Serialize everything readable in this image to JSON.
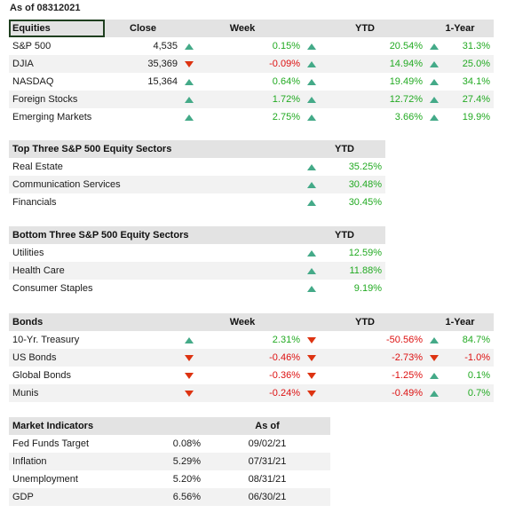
{
  "as_of": "As of 08312021",
  "equities": {
    "headers": [
      "Equities",
      "Close",
      "Week",
      "YTD",
      "1-Year"
    ],
    "rows": [
      {
        "name": "S&P 500",
        "close": "4,535",
        "week": "0.15%",
        "week_dir": "up",
        "ytd": "20.54%",
        "ytd_dir": "up",
        "year": "31.3%",
        "year_dir": "up"
      },
      {
        "name": "DJIA",
        "close": "35,369",
        "week": "-0.09%",
        "week_dir": "down",
        "ytd": "14.94%",
        "ytd_dir": "up",
        "year": "25.0%",
        "year_dir": "up"
      },
      {
        "name": "NASDAQ",
        "close": "15,364",
        "week": "0.64%",
        "week_dir": "up",
        "ytd": "19.49%",
        "ytd_dir": "up",
        "year": "34.1%",
        "year_dir": "up"
      },
      {
        "name": "Foreign Stocks",
        "close": "",
        "week": "1.72%",
        "week_dir": "up",
        "ytd": "12.72%",
        "ytd_dir": "up",
        "year": "27.4%",
        "year_dir": "up"
      },
      {
        "name": "Emerging Markets",
        "close": "",
        "week": "2.75%",
        "week_dir": "up",
        "ytd": "3.66%",
        "ytd_dir": "up",
        "year": "19.9%",
        "year_dir": "up"
      }
    ]
  },
  "top_sectors": {
    "headers": [
      "Top Three S&P 500 Equity Sectors",
      "YTD"
    ],
    "rows": [
      {
        "name": "Real Estate",
        "ytd": "35.25%",
        "ytd_dir": "up"
      },
      {
        "name": "Communication Services",
        "ytd": "30.48%",
        "ytd_dir": "up"
      },
      {
        "name": "Financials",
        "ytd": "30.45%",
        "ytd_dir": "up"
      }
    ]
  },
  "bottom_sectors": {
    "headers": [
      "Bottom Three S&P 500 Equity Sectors",
      "YTD"
    ],
    "rows": [
      {
        "name": "Utilities",
        "ytd": "12.59%",
        "ytd_dir": "up"
      },
      {
        "name": "Health Care",
        "ytd": "11.88%",
        "ytd_dir": "up"
      },
      {
        "name": "Consumer Staples",
        "ytd": "9.19%",
        "ytd_dir": "up"
      }
    ]
  },
  "bonds": {
    "headers": [
      "Bonds",
      "Week",
      "YTD",
      "1-Year"
    ],
    "rows": [
      {
        "name": "10-Yr. Treasury",
        "week": "2.31%",
        "week_dir": "up",
        "ytd": "-50.56%",
        "ytd_dir": "down",
        "year": "84.7%",
        "year_dir": "up"
      },
      {
        "name": "US Bonds",
        "week": "-0.46%",
        "week_dir": "down",
        "ytd": "-2.73%",
        "ytd_dir": "down",
        "year": "-1.0%",
        "year_dir": "down"
      },
      {
        "name": "Global Bonds",
        "week": "-0.36%",
        "week_dir": "down",
        "ytd": "-1.25%",
        "ytd_dir": "down",
        "year": "0.1%",
        "year_dir": "up"
      },
      {
        "name": "Munis",
        "week": "-0.24%",
        "week_dir": "down",
        "ytd": "-0.49%",
        "ytd_dir": "down",
        "year": "0.7%",
        "year_dir": "up"
      }
    ]
  },
  "indicators": {
    "headers": [
      "Market Indicators",
      "",
      "As of"
    ],
    "rows": [
      {
        "name": "Fed Funds Target",
        "value": "0.08%",
        "as_of": "09/02/21"
      },
      {
        "name": "Inflation",
        "value": "5.29%",
        "as_of": "07/31/21"
      },
      {
        "name": "Unemployment",
        "value": "5.20%",
        "as_of": "08/31/21"
      },
      {
        "name": "GDP",
        "value": "6.56%",
        "as_of": "06/30/21"
      }
    ]
  },
  "colors": {
    "positive": "#22aa22",
    "negative": "#dd1111",
    "up_arrow": "#44aa88",
    "down_arrow": "#dd3311",
    "header_bg": "#e3e3e3"
  },
  "icons": {
    "up": "triangle-up-icon",
    "down": "triangle-down-icon"
  }
}
